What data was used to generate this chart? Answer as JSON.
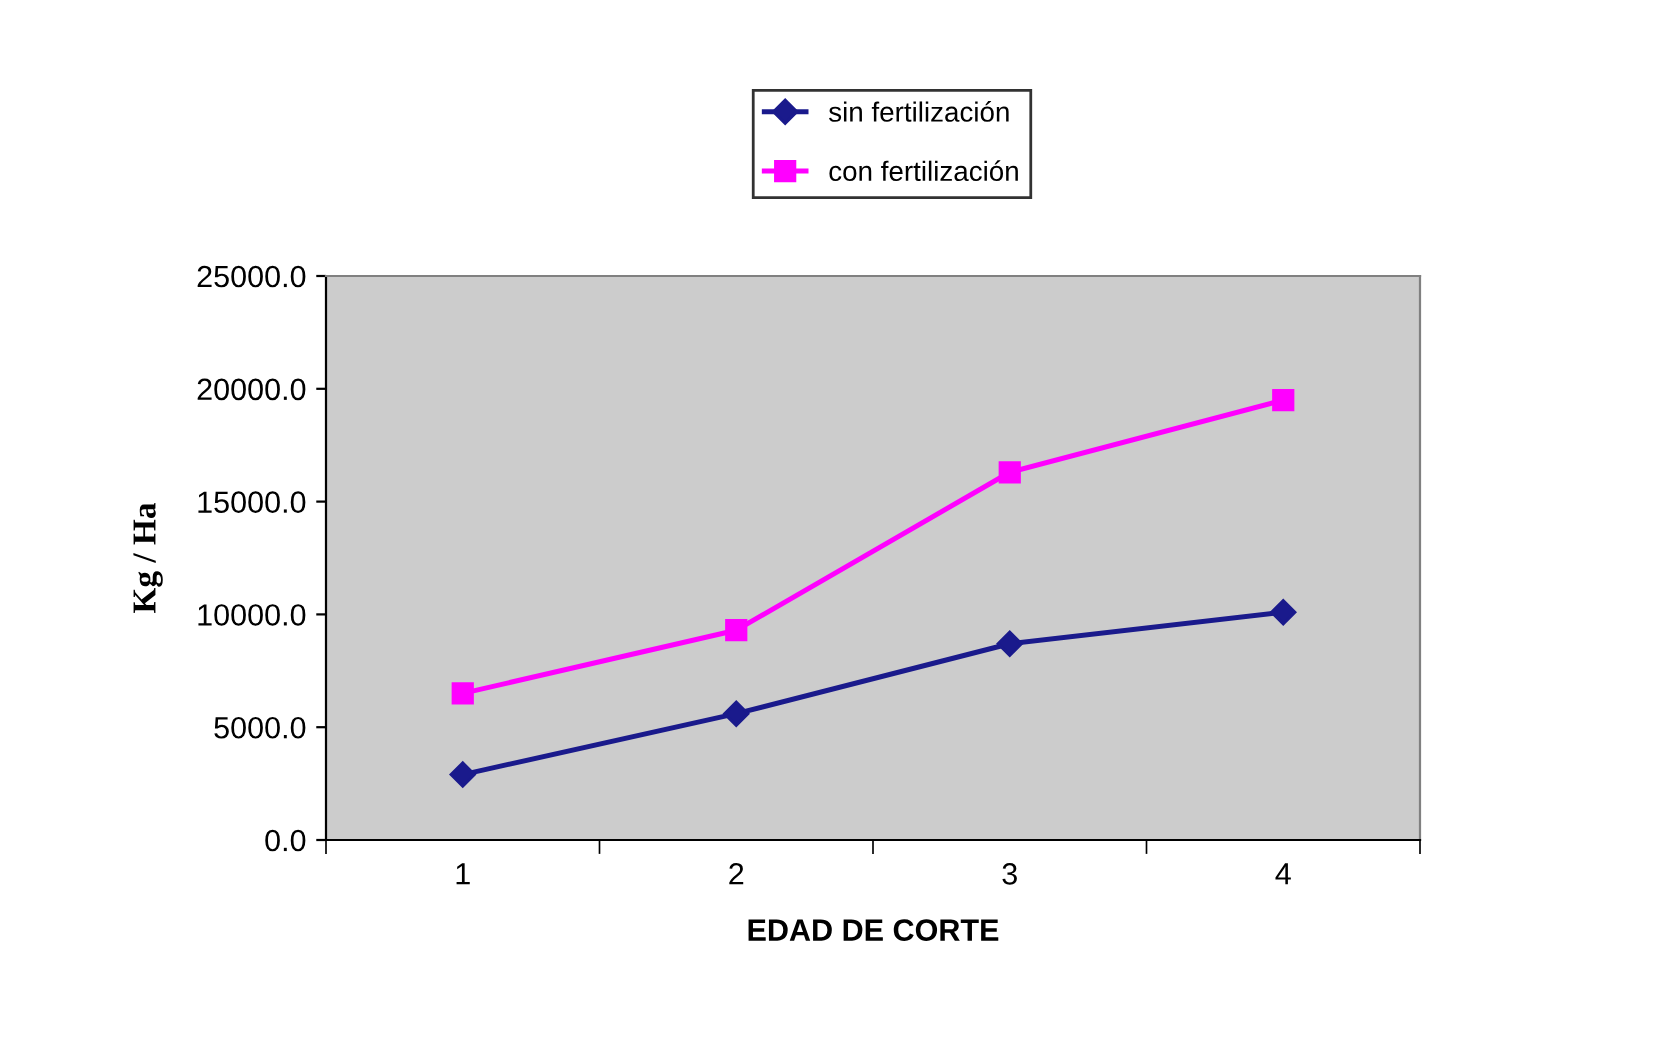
{
  "chart_data": {
    "type": "line",
    "xlabel": "EDAD DE CORTE",
    "ylabel": "Kg / Ha",
    "categories": [
      "1",
      "2",
      "3",
      "4"
    ],
    "series": [
      {
        "name": "sin fertilización",
        "color": "#1a1a8c",
        "marker": "diamond",
        "values": [
          2900,
          5600,
          8700,
          10100
        ]
      },
      {
        "name": "con fertilización",
        "color": "#ff00ff",
        "marker": "square",
        "values": [
          6500,
          9300,
          16300,
          19500
        ]
      }
    ],
    "ylim": [
      0,
      25000
    ],
    "yticks": [
      {
        "value": 0,
        "label": "0.0"
      },
      {
        "value": 5000,
        "label": "5000.0"
      },
      {
        "value": 10000,
        "label": "10000.0"
      },
      {
        "value": 15000,
        "label": "15000.0"
      },
      {
        "value": 20000,
        "label": "20000.0"
      },
      {
        "value": 25000,
        "label": "25000.0"
      }
    ],
    "grid": false,
    "legend": "top"
  }
}
